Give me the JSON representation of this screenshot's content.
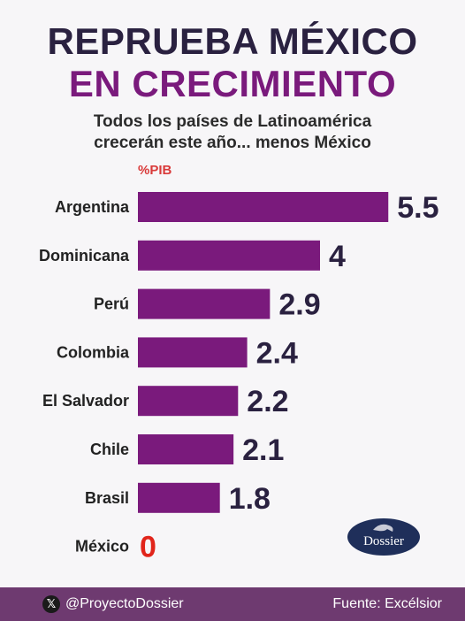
{
  "header": {
    "title_line1": "REPRUEBA MÉXICO",
    "title_line2": "EN CRECIMIENTO",
    "subtitle_line1": "Todos los países de Latinoamérica",
    "subtitle_line2": "crecerán este año... menos México",
    "unit": "%PIB"
  },
  "chart_data": {
    "type": "bar",
    "orientation": "horizontal",
    "title": "REPRUEBA MÉXICO EN CRECIMIENTO",
    "subtitle": "Todos los países de Latinoamérica crecerán este año... menos México",
    "unit_label": "%PIB",
    "categories": [
      "Argentina",
      "Dominicana",
      "Perú",
      "Colombia",
      "El Salvador",
      "Chile",
      "Brasil",
      "México"
    ],
    "values": [
      5.5,
      4,
      2.9,
      2.4,
      2.2,
      2.1,
      1.8,
      0
    ],
    "value_labels": [
      "5.5",
      "4",
      "2.9",
      "2.4",
      "2.2",
      "2.1",
      "1.8",
      "0"
    ],
    "bar_color": "#7a1a7c",
    "highlight_color": "#e1251b",
    "grid": false
  },
  "logo": {
    "text": "Dossier"
  },
  "footer": {
    "icon": "x-icon",
    "icon_glyph": "𝕏",
    "handle": "@ProyectoDossier",
    "source": "Fuente: Excélsior",
    "background": "#6e3a70"
  }
}
